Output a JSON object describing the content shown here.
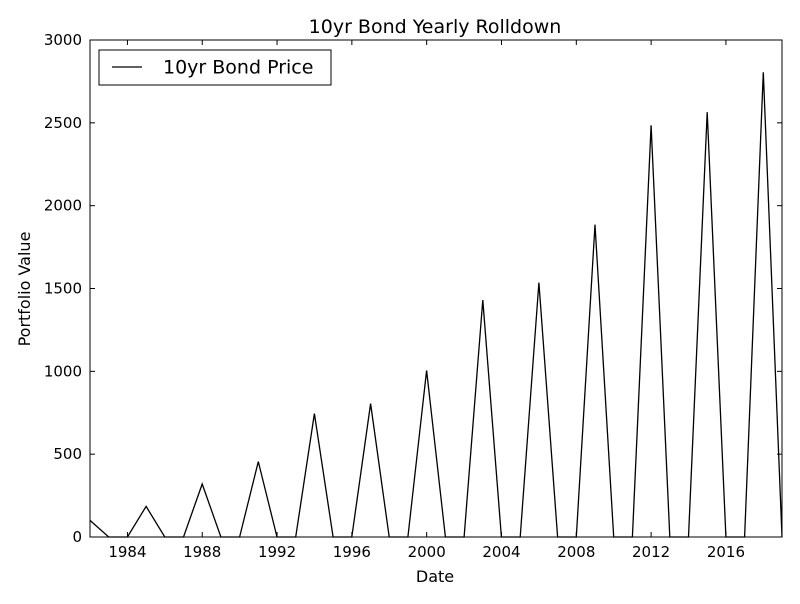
{
  "chart_data": {
    "type": "line",
    "title": "10yr Bond Yearly Rolldown",
    "xlabel": "Date",
    "ylabel": "Portfolio Value",
    "xlim": [
      "1981-12-31",
      "2018-12-31"
    ],
    "ylim": [
      0,
      3000
    ],
    "x_ticks": [
      {
        "value": "1984-01-01",
        "label": "1984"
      },
      {
        "value": "1988-01-01",
        "label": "1988"
      },
      {
        "value": "1992-01-01",
        "label": "1992"
      },
      {
        "value": "1996-01-01",
        "label": "1996"
      },
      {
        "value": "2000-01-01",
        "label": "2000"
      },
      {
        "value": "2004-01-01",
        "label": "2004"
      },
      {
        "value": "2008-01-01",
        "label": "2008"
      },
      {
        "value": "2012-01-01",
        "label": "2012"
      },
      {
        "value": "2016-01-01",
        "label": "2016"
      }
    ],
    "y_ticks": [
      0,
      500,
      1000,
      1500,
      2000,
      2500,
      3000
    ],
    "grid": false,
    "legend": {
      "position": "top-left",
      "entries": [
        "10yr Bond Price"
      ]
    },
    "series": [
      {
        "name": "10yr Bond Price",
        "color": "#000000",
        "points": [
          {
            "x": "1981-12-31",
            "y": 100
          },
          {
            "x": "1982-12-31",
            "y": 0
          },
          {
            "x": "1983-12-31",
            "y": 0
          },
          {
            "x": "1984-12-31",
            "y": 185
          },
          {
            "x": "1985-12-31",
            "y": 0
          },
          {
            "x": "1986-12-31",
            "y": 0
          },
          {
            "x": "1987-12-31",
            "y": 320
          },
          {
            "x": "1988-12-31",
            "y": 0
          },
          {
            "x": "1989-12-31",
            "y": 0
          },
          {
            "x": "1990-12-31",
            "y": 455
          },
          {
            "x": "1991-12-31",
            "y": 0
          },
          {
            "x": "1992-12-31",
            "y": 0
          },
          {
            "x": "1993-12-31",
            "y": 745
          },
          {
            "x": "1994-12-31",
            "y": 0
          },
          {
            "x": "1995-12-31",
            "y": 0
          },
          {
            "x": "1996-12-31",
            "y": 805
          },
          {
            "x": "1997-12-31",
            "y": 0
          },
          {
            "x": "1998-12-31",
            "y": 0
          },
          {
            "x": "1999-12-31",
            "y": 1005
          },
          {
            "x": "2000-12-31",
            "y": 0
          },
          {
            "x": "2001-12-31",
            "y": 0
          },
          {
            "x": "2002-12-31",
            "y": 1430
          },
          {
            "x": "2003-12-31",
            "y": 0
          },
          {
            "x": "2004-12-31",
            "y": 0
          },
          {
            "x": "2005-12-31",
            "y": 1535
          },
          {
            "x": "2006-12-31",
            "y": 0
          },
          {
            "x": "2007-12-31",
            "y": 0
          },
          {
            "x": "2008-12-31",
            "y": 1885
          },
          {
            "x": "2009-12-31",
            "y": 0
          },
          {
            "x": "2010-12-31",
            "y": 0
          },
          {
            "x": "2011-12-31",
            "y": 2485
          },
          {
            "x": "2012-12-31",
            "y": 0
          },
          {
            "x": "2013-12-31",
            "y": 0
          },
          {
            "x": "2014-12-31",
            "y": 2565
          },
          {
            "x": "2015-12-31",
            "y": 0
          },
          {
            "x": "2016-12-31",
            "y": 0
          },
          {
            "x": "2017-12-31",
            "y": 2805
          },
          {
            "x": "2018-12-31",
            "y": 0
          }
        ]
      }
    ]
  }
}
